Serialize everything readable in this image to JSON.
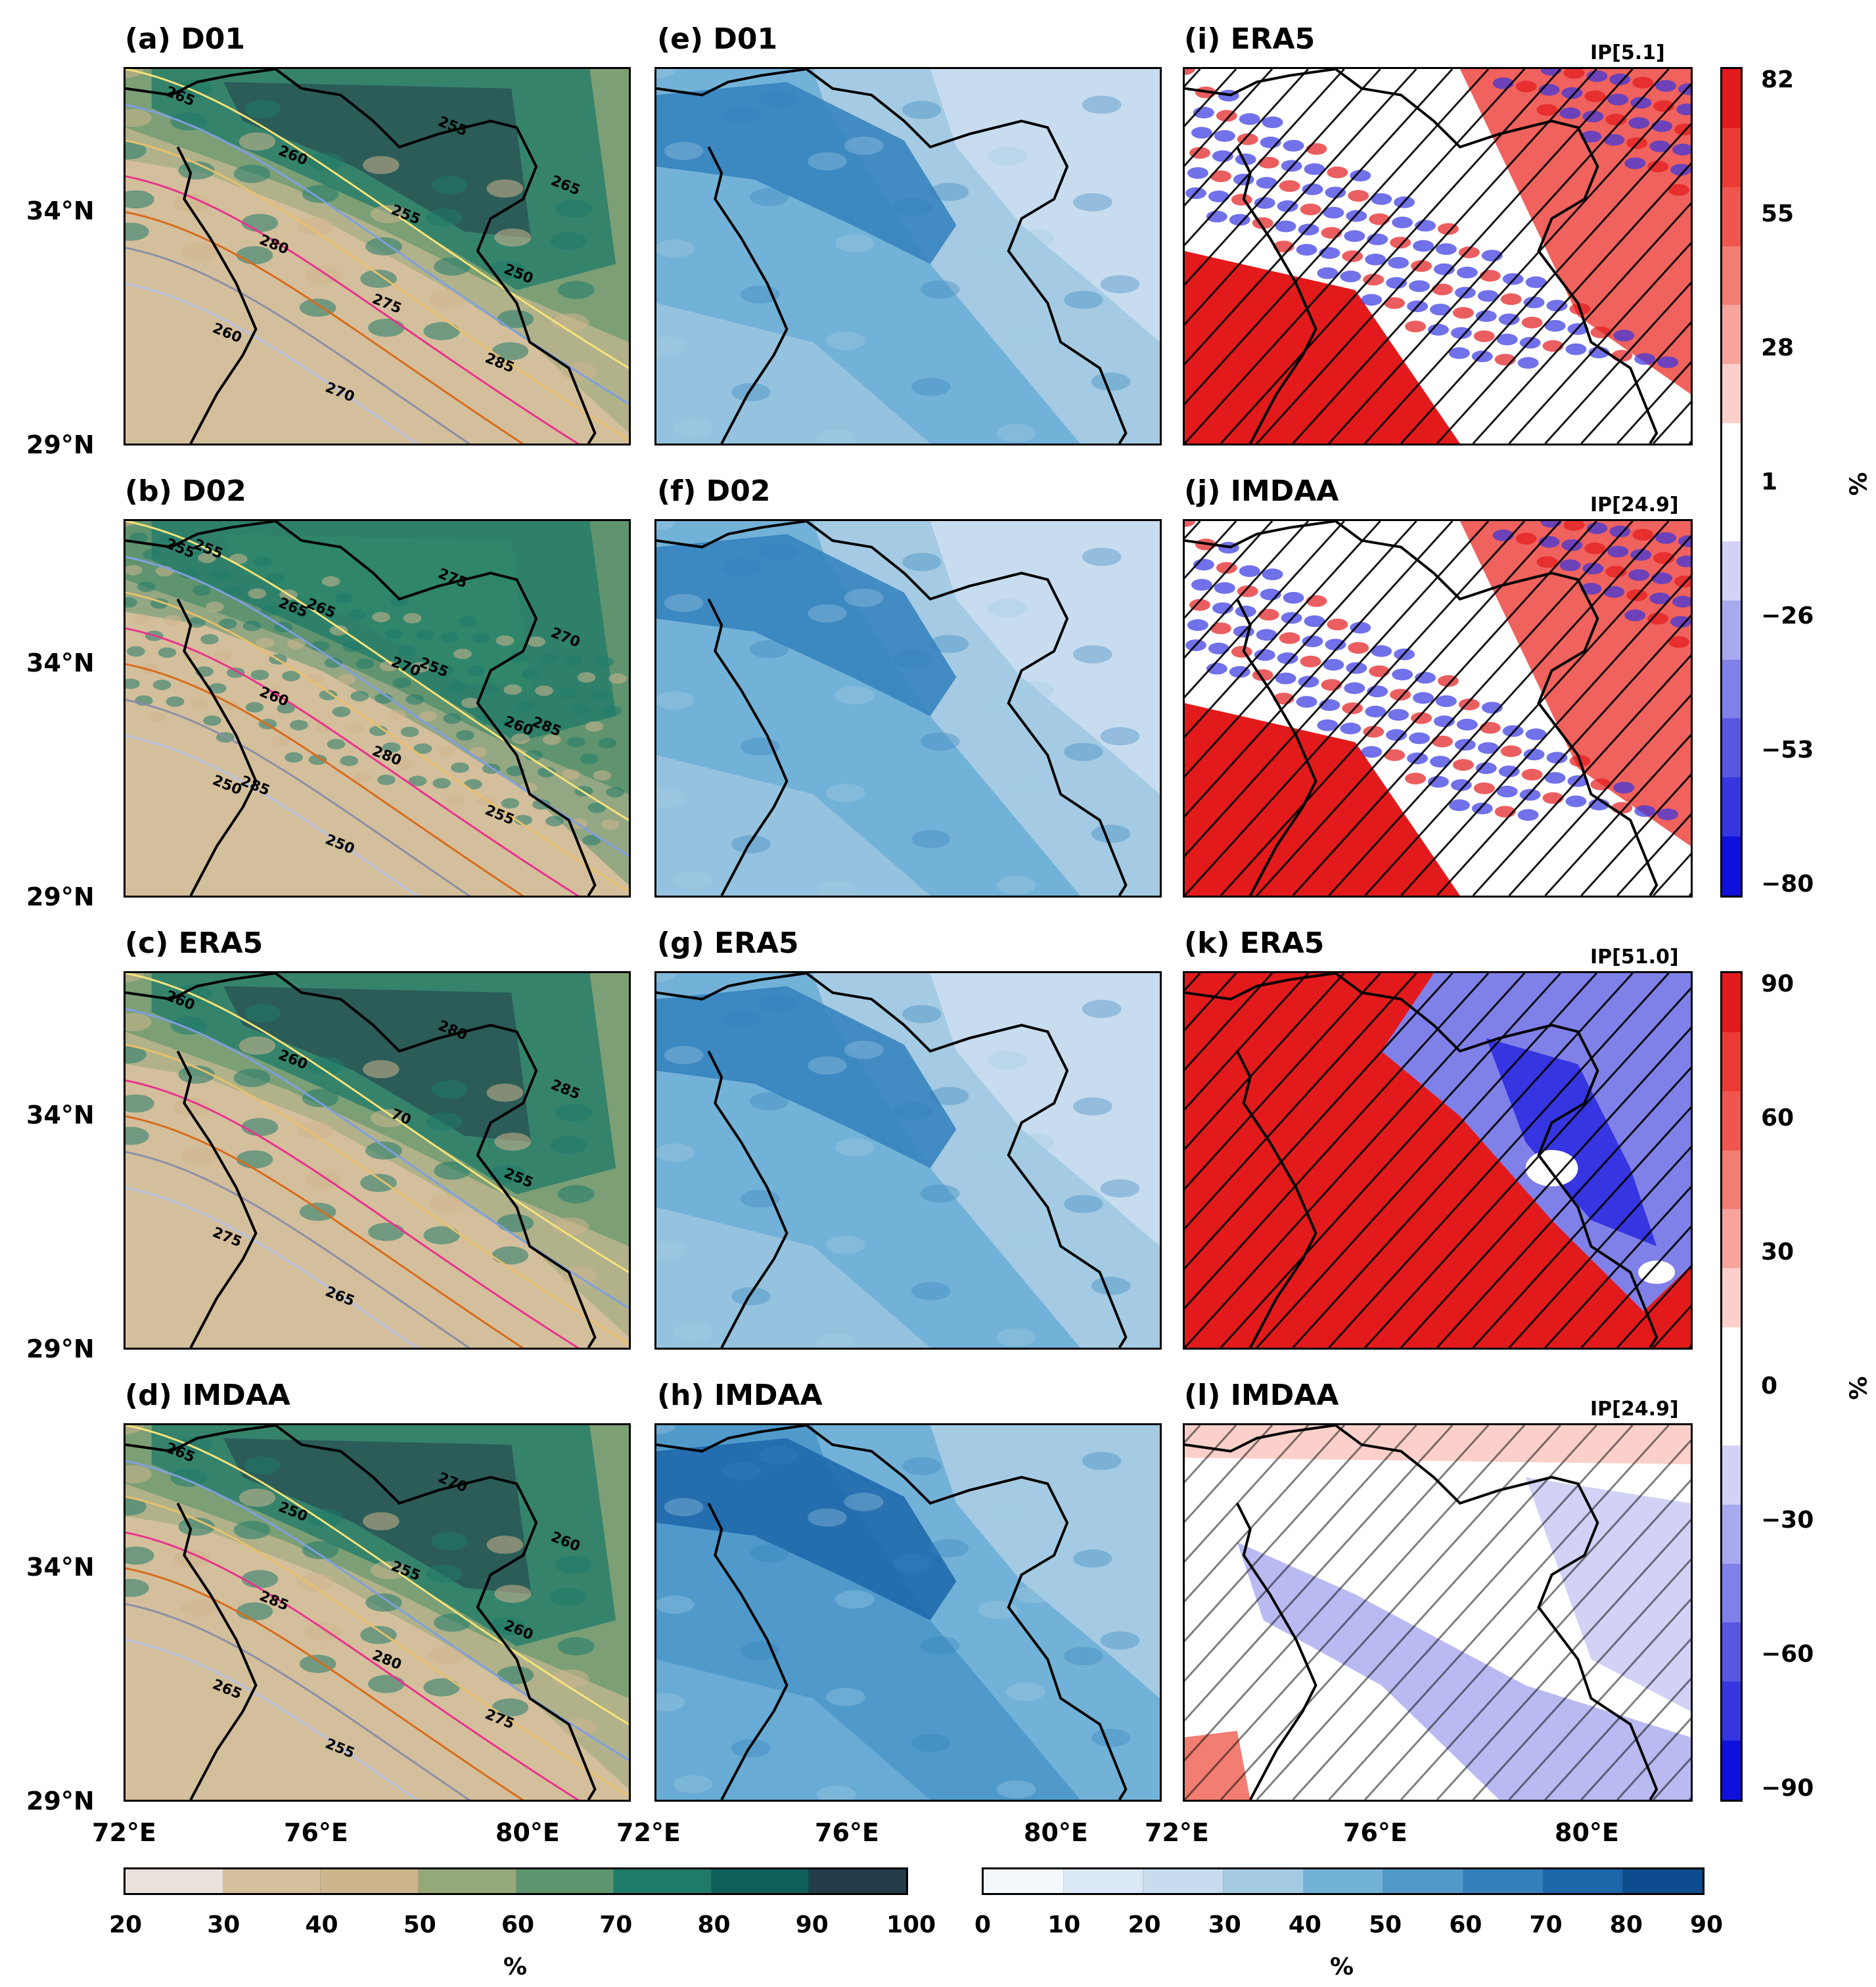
{
  "chart_data": {
    "type": "heatmap",
    "panels": [
      {
        "id": "a",
        "title": "(a) D01",
        "column": "cloud-cover",
        "contours": [
          "265",
          "260",
          "255",
          "250",
          "260",
          "270",
          "255",
          "265",
          "280",
          "275",
          "285"
        ]
      },
      {
        "id": "b",
        "title": "(b) D02",
        "column": "cloud-cover",
        "contours": [
          "255",
          "265",
          "270",
          "260",
          "250",
          "250",
          "275",
          "270",
          "260",
          "280",
          "255",
          "255",
          "265",
          "255",
          "285",
          "285"
        ]
      },
      {
        "id": "c",
        "title": "(c) ERA5",
        "column": "cloud-cover",
        "contours": [
          "260",
          "260",
          "70",
          "255",
          "275",
          "265",
          "280",
          "285"
        ]
      },
      {
        "id": "d",
        "title": "(d) IMDAA",
        "column": "cloud-cover",
        "contours": [
          "265",
          "250",
          "255",
          "260",
          "265",
          "255",
          "270",
          "260",
          "285",
          "280",
          "275"
        ]
      },
      {
        "id": "e",
        "title": "(e) D01",
        "column": "blue"
      },
      {
        "id": "f",
        "title": "(f) D02",
        "column": "blue"
      },
      {
        "id": "g",
        "title": "(g) ERA5",
        "column": "blue"
      },
      {
        "id": "h",
        "title": "(h) IMDAA",
        "column": "blue"
      },
      {
        "id": "i",
        "title": "(i) ERA5",
        "column": "difference",
        "ip": "IP[5.1]"
      },
      {
        "id": "j",
        "title": "(j) IMDAA",
        "column": "difference",
        "ip": "IP[24.9]"
      },
      {
        "id": "k",
        "title": "(k) ERA5",
        "column": "difference",
        "ip": "IP[51.0]"
      },
      {
        "id": "l",
        "title": "(l) IMDAA",
        "column": "difference",
        "ip": "IP[24.9]"
      }
    ],
    "lat_ticks": [
      "34°N",
      "29°N"
    ],
    "lon_ticks_col1": [
      "72°E",
      "76°E",
      "80°E"
    ],
    "lon_ticks_col2": [
      "72°E",
      "76°E",
      "80°E"
    ],
    "lon_ticks_col3": [
      "72°E",
      "76°E",
      "80°E"
    ],
    "colorbar_cloud": {
      "ticks": [
        "20",
        "30",
        "40",
        "50",
        "60",
        "70",
        "80",
        "90",
        "100"
      ],
      "colors": [
        "#e9e1dc",
        "#d4bf9c",
        "#cdb58e",
        "#94a87a",
        "#5f9470",
        "#1f7a69",
        "#0e5e5a",
        "#223c49",
        "#22213a"
      ],
      "unit": "%"
    },
    "colorbar_blue": {
      "ticks": [
        "0",
        "10",
        "20",
        "30",
        "40",
        "50",
        "60",
        "70",
        "80",
        "90"
      ],
      "colors": [
        "#f3f8fd",
        "#dbe9f6",
        "#c7dcef",
        "#a4cbe3",
        "#73b2d8",
        "#4f9acb",
        "#3380bd",
        "#1c66aa",
        "#0d4c8e"
      ],
      "unit": "%"
    },
    "colorbar_diff_top": {
      "ticks": [
        "82",
        "55",
        "28",
        "1",
        "−26",
        "−53",
        "−80"
      ],
      "colors": [
        "#e31a1c",
        "#ec3b35",
        "#f0564d",
        "#f27d72",
        "#f6a49c",
        "#fbd0ca",
        "#ffffff",
        "#ffffff",
        "#d2d2f6",
        "#a9a9ef",
        "#8080e9",
        "#5757e3",
        "#3535e1",
        "#1010dd"
      ],
      "unit": "%"
    },
    "colorbar_diff_bottom": {
      "ticks": [
        "90",
        "60",
        "30",
        "0",
        "−30",
        "−60",
        "−90"
      ],
      "colors": [
        "#e31a1c",
        "#ec3b35",
        "#f0564d",
        "#f27d72",
        "#f6a49c",
        "#fbd0ca",
        "#ffffff",
        "#ffffff",
        "#d2d2f6",
        "#a9a9ef",
        "#8080e9",
        "#5757e3",
        "#3535e1",
        "#1010dd"
      ],
      "unit": "%"
    }
  }
}
